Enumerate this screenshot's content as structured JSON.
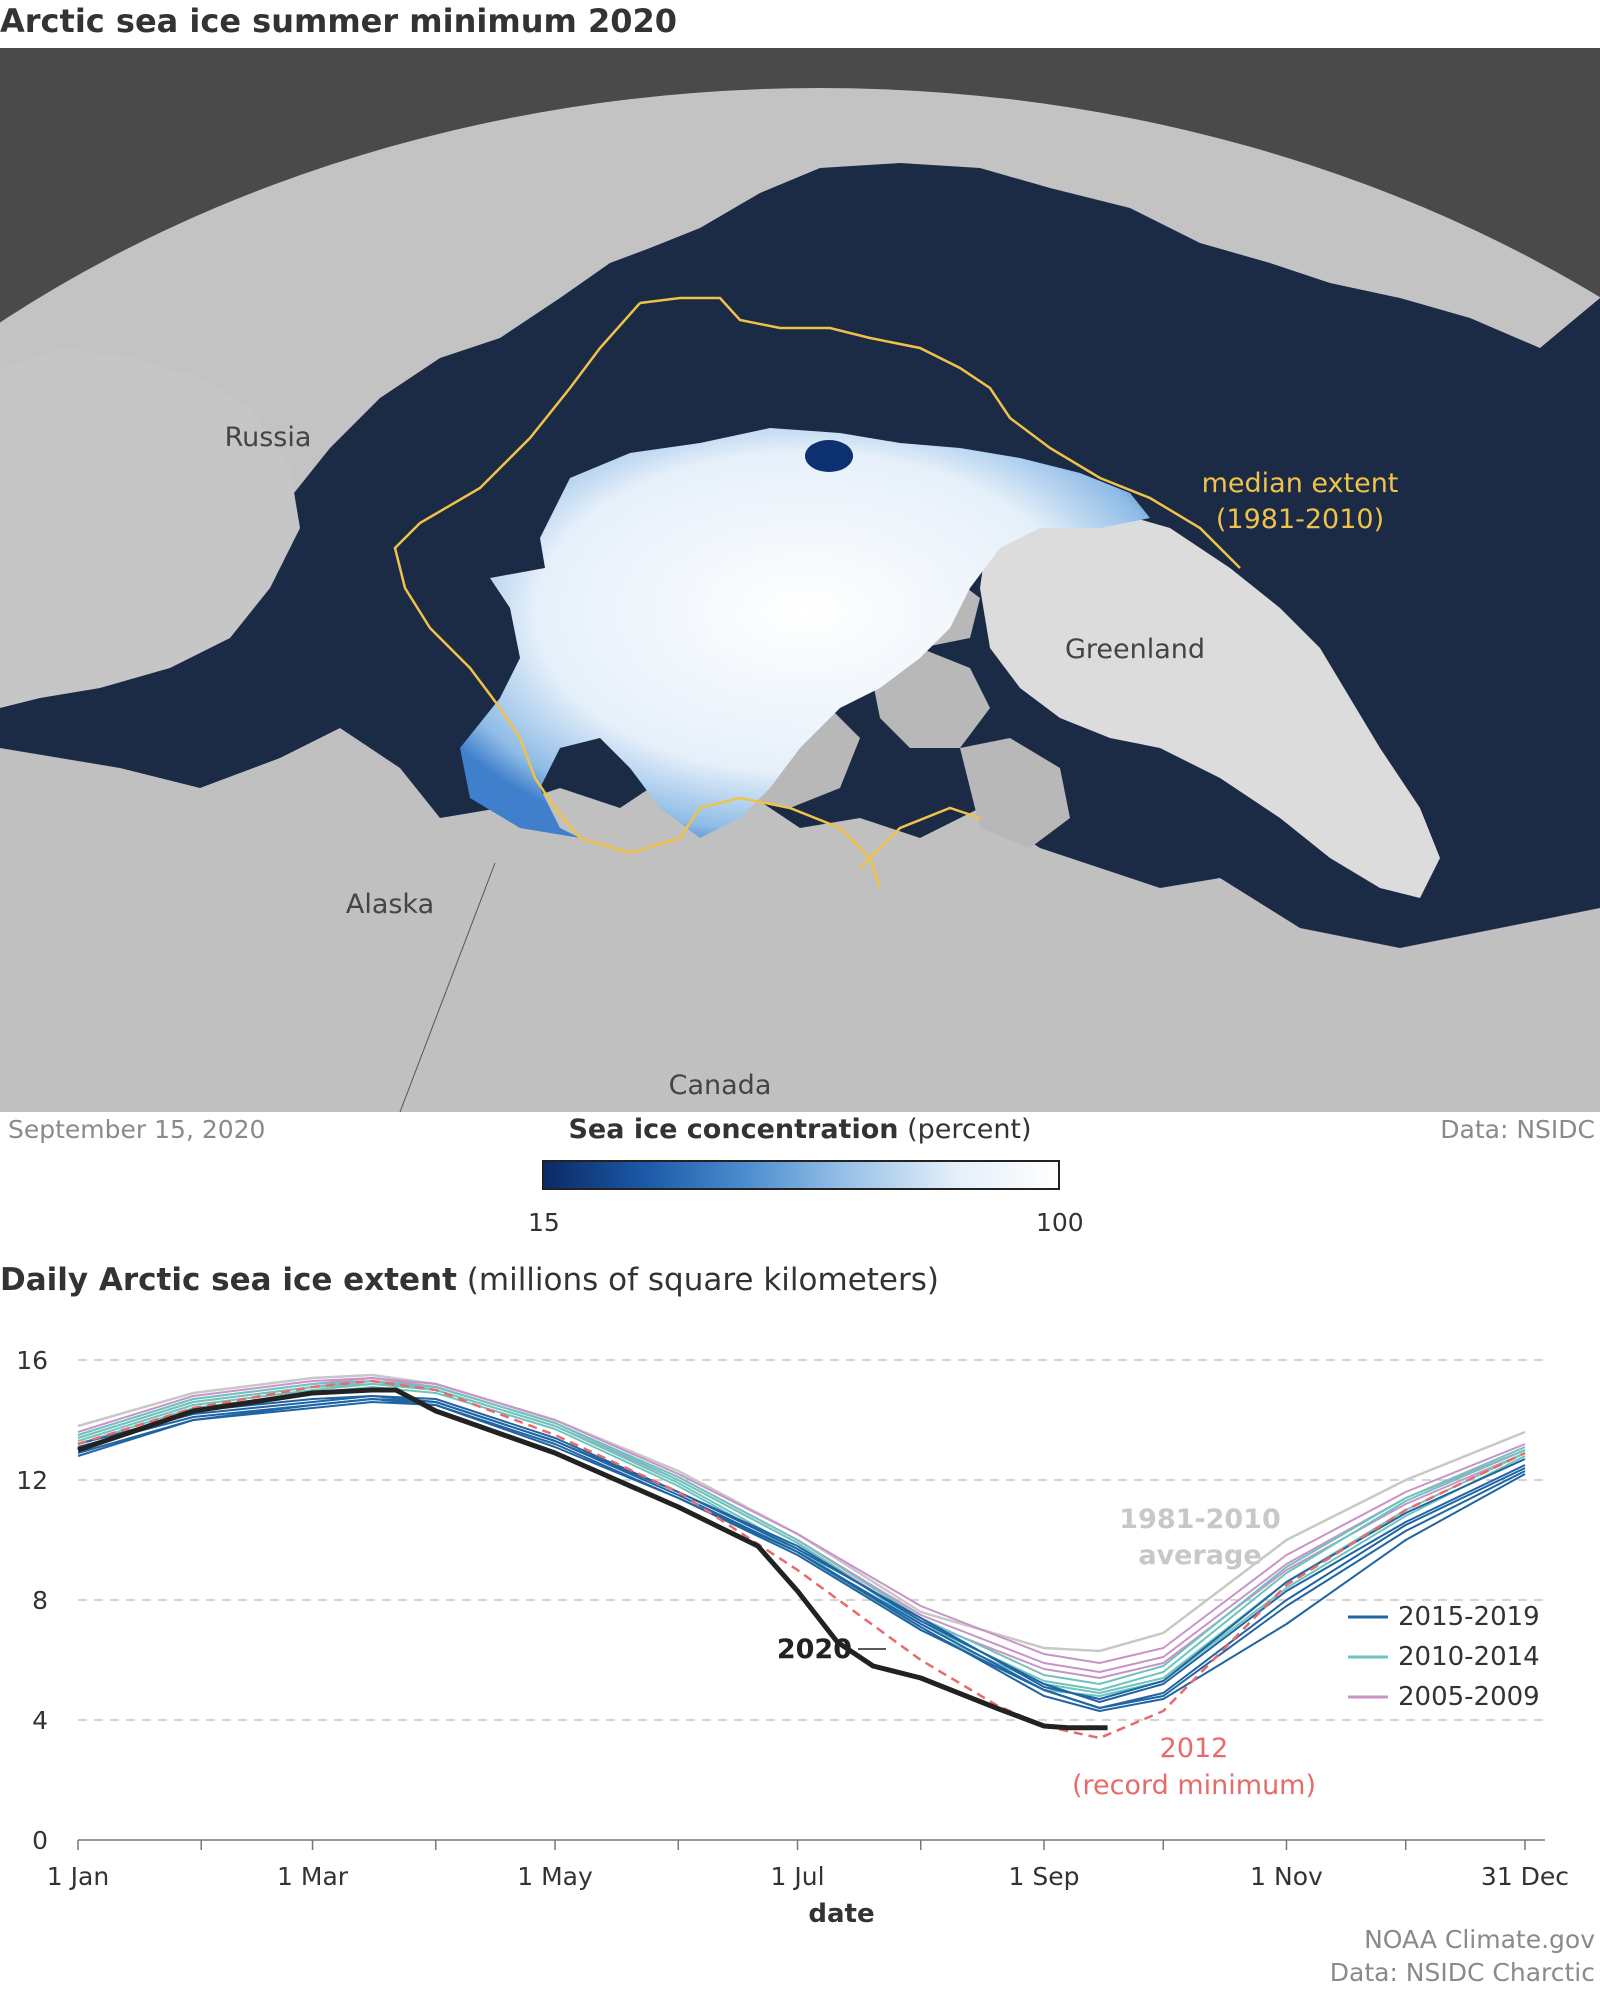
{
  "map": {
    "title": "Arctic sea ice summer minimum 2020",
    "labels": {
      "russia": "Russia",
      "alaska": "Alaska",
      "canada": "Canada",
      "greenland": "Greenland",
      "median_line1": "median extent",
      "median_line2": "(1981-2010)"
    },
    "date": "September 15, 2020",
    "source": "Data: NSIDC",
    "colorbar": {
      "title_bold": "Sea ice concentration",
      "title_rest": " (percent)",
      "min_label": "15",
      "max_label": "100"
    },
    "colors": {
      "ocean": "#1b2a45",
      "land": "#bdbdbd",
      "ice": "#f2f7fc",
      "median_line": "#f0c24a",
      "background": "#4a4a4a"
    }
  },
  "chart_data": {
    "type": "line",
    "title_bold": "Daily Arctic sea ice extent",
    "title_rest": " (millions of square kilometers)",
    "xlabel": "date",
    "ylabel": "",
    "ylim": [
      0,
      16
    ],
    "xlim": [
      1,
      365
    ],
    "y_ticks": [
      "0",
      "4",
      "8",
      "12",
      "16"
    ],
    "y_tick_values": [
      0,
      4,
      8,
      12,
      16
    ],
    "x_tick_labels": [
      "1 Jan",
      "1 Mar",
      "1 May",
      "1 Jul",
      "1 Sep",
      "1 Nov",
      "31 Dec"
    ],
    "x_tick_values": [
      1,
      60,
      121,
      182,
      244,
      305,
      365
    ],
    "x_minor_ticks": [
      32,
      91,
      152,
      213,
      274,
      335
    ],
    "grid": "horizontal dashed",
    "legend_position": "right",
    "legend": [
      {
        "label": "2015-2019",
        "color": "#1f64a3"
      },
      {
        "label": "2010-2014",
        "color": "#6ec4bd"
      },
      {
        "label": "2005-2009",
        "color": "#c993c9"
      }
    ],
    "annotations": {
      "avg_line1": "1981-2010",
      "avg_line2": "average",
      "label_2020": "2020",
      "rec_line1": "2012",
      "rec_line2": "(record minimum)"
    },
    "series": [
      {
        "name": "1981-2010 average",
        "color": "#c8c8c8",
        "style": "solid",
        "x": [
          1,
          30,
          60,
          75,
          91,
          121,
          152,
          182,
          213,
          244,
          258,
          274,
          305,
          335,
          365
        ],
        "y": [
          13.8,
          14.9,
          15.4,
          15.5,
          15.2,
          14.0,
          12.3,
          10.2,
          7.6,
          6.4,
          6.3,
          6.9,
          10.0,
          12.0,
          13.6
        ]
      },
      {
        "name": "2012",
        "color": "#e86a6a",
        "style": "dashed",
        "x": [
          1,
          30,
          60,
          75,
          91,
          121,
          152,
          182,
          213,
          232,
          244,
          258,
          274,
          305,
          335,
          365
        ],
        "y": [
          13.2,
          14.4,
          15.1,
          15.3,
          15.0,
          13.5,
          11.6,
          9.0,
          6.0,
          4.5,
          3.8,
          3.4,
          4.3,
          8.5,
          11.0,
          12.9
        ]
      },
      {
        "name": "2020",
        "color": "#222222",
        "style": "solid-thick",
        "x": [
          1,
          30,
          60,
          75,
          81,
          91,
          121,
          152,
          172,
          182,
          192,
          201,
          213,
          232,
          244,
          250,
          260
        ],
        "y": [
          13.0,
          14.3,
          14.9,
          15.0,
          15.0,
          14.3,
          12.9,
          11.1,
          9.8,
          8.3,
          6.6,
          5.8,
          5.4,
          4.4,
          3.8,
          3.74,
          3.74
        ]
      }
    ],
    "series_groups": [
      {
        "name": "2015-2019",
        "color": "#1f64a3",
        "lines": [
          {
            "x": [
              1,
              30,
              60,
              75,
              91,
              121,
              152,
              182,
              213,
              244,
              258,
              274,
              305,
              335,
              365
            ],
            "y": [
              12.9,
              14.0,
              14.4,
              14.6,
              14.5,
              13.2,
              11.4,
              9.5,
              7.0,
              5.0,
              4.4,
              4.8,
              7.8,
              10.3,
              12.3
            ]
          },
          {
            "x": [
              1,
              30,
              60,
              75,
              91,
              121,
              152,
              182,
              213,
              244,
              258,
              274,
              305,
              335,
              365
            ],
            "y": [
              13.2,
              14.2,
              14.6,
              14.8,
              14.7,
              13.4,
              11.6,
              9.8,
              7.3,
              5.2,
              4.6,
              5.2,
              8.3,
              10.6,
              12.5
            ]
          },
          {
            "x": [
              1,
              30,
              60,
              75,
              91,
              121,
              152,
              182,
              213,
              244,
              258,
              274,
              305,
              335,
              365
            ],
            "y": [
              13.1,
              14.1,
              14.5,
              14.7,
              14.5,
              13.1,
              11.4,
              9.6,
              7.1,
              4.8,
              4.3,
              4.7,
              7.2,
              10.0,
              12.2
            ]
          },
          {
            "x": [
              1,
              30,
              60,
              75,
              91,
              121,
              152,
              182,
              213,
              244,
              258,
              274,
              305,
              335,
              365
            ],
            "y": [
              13.0,
              14.3,
              14.7,
              14.8,
              14.6,
              13.3,
              11.6,
              9.7,
              7.4,
              5.1,
              4.7,
              5.3,
              8.6,
              10.9,
              12.7
            ]
          },
          {
            "x": [
              1,
              30,
              60,
              75,
              91,
              121,
              152,
              182,
              213,
              244,
              258,
              274,
              305,
              335,
              365
            ],
            "y": [
              12.8,
              14.0,
              14.5,
              14.7,
              14.6,
              13.3,
              11.5,
              9.6,
              7.2,
              5.0,
              4.4,
              4.9,
              8.0,
              10.5,
              12.4
            ]
          }
        ]
      },
      {
        "name": "2010-2014",
        "color": "#6ec4bd",
        "lines": [
          {
            "x": [
              1,
              30,
              60,
              75,
              91,
              121,
              152,
              182,
              213,
              244,
              258,
              274,
              305,
              335,
              365
            ],
            "y": [
              13.3,
              14.5,
              15.0,
              15.2,
              15.0,
              13.8,
              11.9,
              9.7,
              7.0,
              5.2,
              4.9,
              5.4,
              8.6,
              11.0,
              12.9
            ]
          },
          {
            "x": [
              1,
              30,
              60,
              75,
              91,
              121,
              152,
              182,
              213,
              244,
              258,
              274,
              305,
              335,
              365
            ],
            "y": [
              13.4,
              14.6,
              15.1,
              15.2,
              15.1,
              13.9,
              12.0,
              9.9,
              7.2,
              5.3,
              5.0,
              5.6,
              8.9,
              11.3,
              13.0
            ]
          },
          {
            "x": [
              1,
              30,
              60,
              75,
              91,
              121,
              152,
              182,
              213,
              244,
              258,
              274,
              305,
              335,
              365
            ],
            "y": [
              13.2,
              14.4,
              14.9,
              15.1,
              14.9,
              13.7,
              11.8,
              9.6,
              7.0,
              5.0,
              4.8,
              5.3,
              8.4,
              10.8,
              12.8
            ]
          },
          {
            "x": [
              1,
              30,
              60,
              75,
              91,
              121,
              152,
              182,
              213,
              244,
              258,
              274,
              305,
              335,
              365
            ],
            "y": [
              13.5,
              14.7,
              15.2,
              15.3,
              15.1,
              13.9,
              12.1,
              10.0,
              7.4,
              5.5,
              5.2,
              5.8,
              9.1,
              11.4,
              13.1
            ]
          }
        ]
      },
      {
        "name": "2005-2009",
        "color": "#c993c9",
        "lines": [
          {
            "x": [
              1,
              30,
              60,
              75,
              91,
              121,
              152,
              182,
              213,
              244,
              258,
              274,
              305,
              335,
              365
            ],
            "y": [
              13.5,
              14.7,
              15.2,
              15.4,
              15.1,
              13.9,
              12.1,
              10.0,
              7.5,
              5.9,
              5.6,
              6.1,
              9.2,
              11.4,
              13.0
            ]
          },
          {
            "x": [
              1,
              30,
              60,
              75,
              91,
              121,
              152,
              182,
              213,
              244,
              258,
              274,
              305,
              335,
              365
            ],
            "y": [
              13.6,
              14.8,
              15.3,
              15.4,
              15.2,
              14.0,
              12.2,
              10.2,
              7.8,
              6.2,
              5.9,
              6.4,
              9.5,
              11.6,
              13.2
            ]
          },
          {
            "x": [
              1,
              30,
              60,
              75,
              91,
              121,
              152,
              182,
              213,
              244,
              258,
              274,
              305,
              335,
              365
            ],
            "y": [
              13.4,
              14.6,
              15.1,
              15.3,
              15.0,
              13.8,
              12.0,
              9.9,
              7.3,
              5.7,
              5.4,
              5.9,
              9.0,
              11.2,
              12.9
            ]
          }
        ]
      }
    ]
  },
  "credits": {
    "line1": "NOAA Climate.gov",
    "line2": "Data: NSIDC Charctic"
  }
}
